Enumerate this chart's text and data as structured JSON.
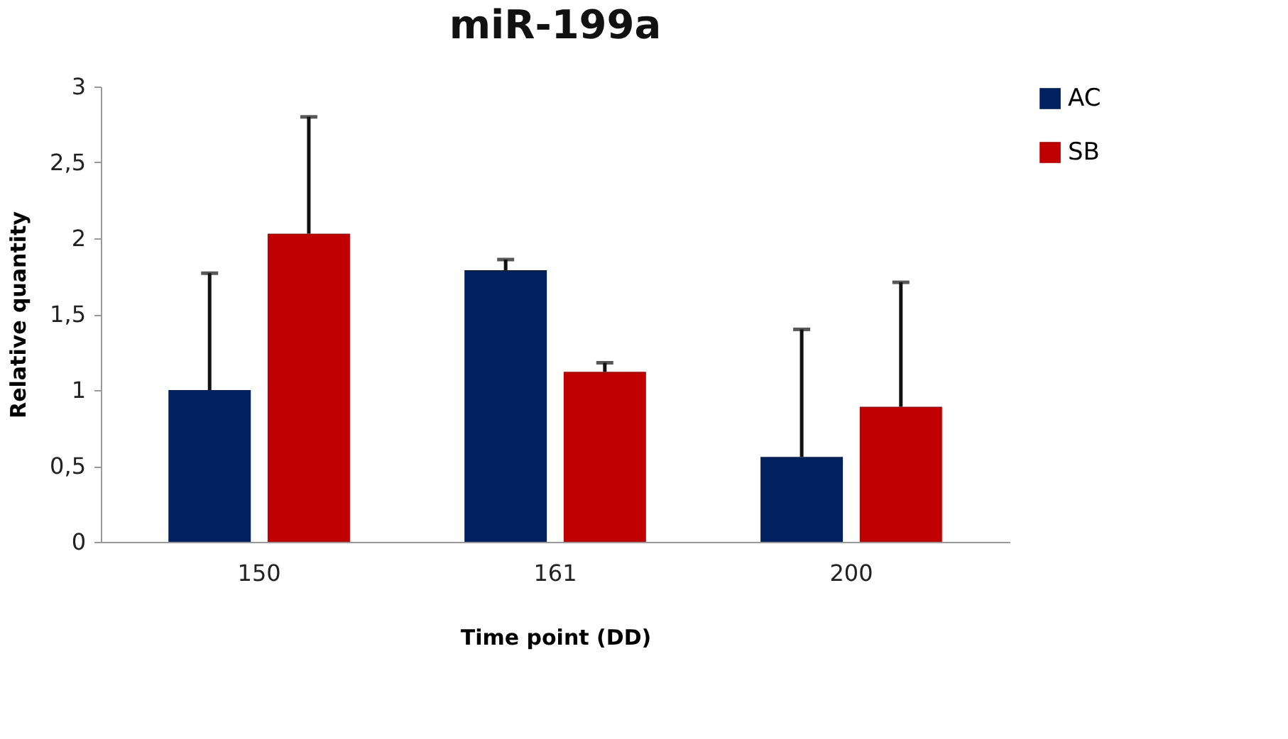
{
  "chart_data": {
    "type": "bar",
    "title": "miR-199a",
    "xlabel": "Time point (DD)",
    "ylabel": "Relative quantity",
    "categories": [
      "150",
      "161",
      "200"
    ],
    "series": [
      {
        "name": "AC",
        "color": "#002060",
        "values": [
          1.0,
          1.79,
          0.56
        ],
        "errors": [
          [
            1.0,
            1.77
          ],
          [
            1.79,
            1.86
          ],
          [
            0.56,
            1.4
          ]
        ]
      },
      {
        "name": "SB",
        "color": "#c00000",
        "values": [
          2.03,
          1.12,
          0.89
        ],
        "errors": [
          [
            2.03,
            2.8
          ],
          [
            1.12,
            1.18
          ],
          [
            0.89,
            1.71
          ]
        ]
      }
    ],
    "ylim": [
      0,
      3
    ],
    "yticks": [
      0,
      {
        "value": 0.5,
        "label": "0,5"
      },
      1,
      {
        "value": 1.5,
        "label": "1,5"
      },
      2,
      {
        "value": 2.5,
        "label": "2,5"
      },
      3
    ],
    "grid": false,
    "legend": "right"
  }
}
